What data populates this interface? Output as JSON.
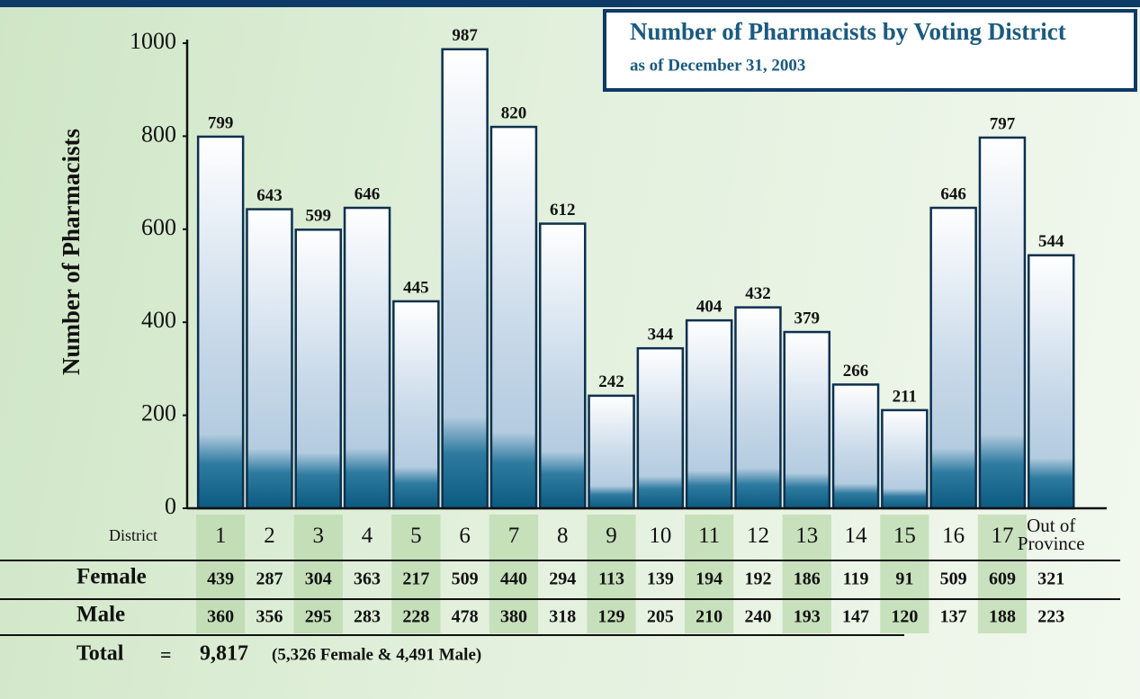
{
  "chart_data": {
    "type": "bar",
    "title": "Number of Pharmacists by Voting District",
    "subtitle": "as of December 31, 2003",
    "y_label": "Number of Pharmacists",
    "x_label": "District",
    "categories": [
      "1",
      "2",
      "3",
      "4",
      "5",
      "6",
      "7",
      "8",
      "9",
      "10",
      "11",
      "12",
      "13",
      "14",
      "15",
      "16",
      "17",
      "Out of Province"
    ],
    "values": [
      799,
      643,
      599,
      646,
      445,
      987,
      820,
      612,
      242,
      344,
      404,
      432,
      379,
      266,
      211,
      646,
      797,
      544
    ],
    "color": "#0e5a80",
    "ylim": [
      0,
      1000
    ],
    "yticks": [
      0,
      200,
      400,
      600,
      800,
      1000
    ]
  },
  "table": {
    "rows": [
      {
        "label": "Female",
        "values": [
          439,
          287,
          304,
          363,
          217,
          509,
          440,
          294,
          113,
          139,
          194,
          192,
          186,
          119,
          91,
          509,
          609,
          321
        ]
      },
      {
        "label": "Male",
        "values": [
          360,
          356,
          295,
          283,
          228,
          478,
          380,
          318,
          129,
          205,
          210,
          240,
          193,
          147,
          120,
          137,
          188,
          223
        ]
      }
    ],
    "total": {
      "label": "Total",
      "equals": "=",
      "value": "9,817",
      "breakdown": "(5,326 Female & 4,491 Male)"
    }
  }
}
